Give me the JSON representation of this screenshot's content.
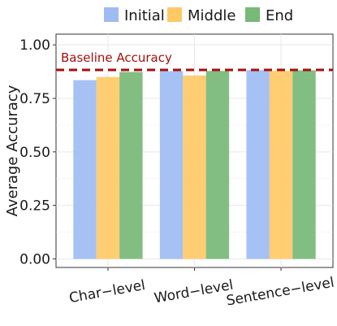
{
  "chart_data": {
    "type": "bar",
    "title": "",
    "xlabel": "",
    "ylabel": "Average Accuracy",
    "ylim": [
      0,
      1.0
    ],
    "yticks": [
      0.0,
      0.25,
      0.5,
      0.75,
      1.0
    ],
    "ytick_labels": [
      "0.00",
      "0.25",
      "0.50",
      "0.75",
      "1.00"
    ],
    "categories": [
      "Char−level",
      "Word−level",
      "Sentence−level"
    ],
    "series": [
      {
        "name": "Initial",
        "color": "#9EBCF2",
        "values": [
          0.835,
          0.877,
          0.882
        ]
      },
      {
        "name": "Middle",
        "color": "#FFC966",
        "values": [
          0.85,
          0.857,
          0.878
        ]
      },
      {
        "name": "End",
        "color": "#77B977",
        "values": [
          0.873,
          0.878,
          0.881
        ]
      }
    ],
    "reference_line": {
      "label": "Baseline Accuracy",
      "value": 0.883,
      "color": "#A50F0F",
      "style": "dashed"
    },
    "legend_placement": "top",
    "grid": true,
    "x_tick_rotation_deg": 10
  }
}
